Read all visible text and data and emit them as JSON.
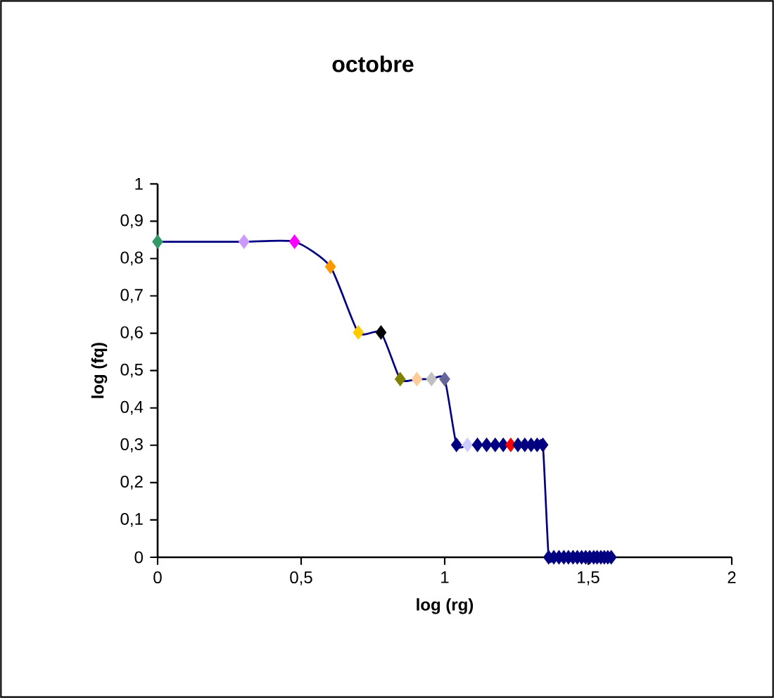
{
  "chart_data": {
    "type": "line",
    "title": "octobre",
    "xlabel": "log (rg)",
    "ylabel": "log (fq)",
    "marker": "diamond",
    "line_style": "solid",
    "xlim": [
      0,
      2
    ],
    "ylim": [
      0,
      1
    ],
    "xticks": [
      0,
      {
        "value": 0.5,
        "label": "0,5"
      },
      1,
      {
        "value": 1.5,
        "label": "1,5"
      },
      2
    ],
    "yticks": [
      0,
      {
        "value": 0.1,
        "label": "0,1"
      },
      {
        "value": 0.2,
        "label": "0,2"
      },
      {
        "value": 0.3,
        "label": "0,3"
      },
      {
        "value": 0.4,
        "label": "0,4"
      },
      {
        "value": 0.5,
        "label": "0,5"
      },
      {
        "value": 0.6,
        "label": "0,6"
      },
      {
        "value": 0.7,
        "label": "0,7"
      },
      {
        "value": 0.8,
        "label": "0,8"
      },
      {
        "value": 0.9,
        "label": "0,9"
      },
      1
    ],
    "series": [
      {
        "color": "#000080",
        "x": [
          0,
          0.301,
          0.477,
          0.602,
          0.699,
          0.778,
          0.845,
          0.903,
          0.954,
          1.0,
          1.041,
          1.079,
          1.114,
          1.146,
          1.176,
          1.204,
          1.23,
          1.255,
          1.279,
          1.301,
          1.322,
          1.342,
          1.362,
          1.38,
          1.398,
          1.415,
          1.431,
          1.447,
          1.462,
          1.477,
          1.491,
          1.505,
          1.519,
          1.531,
          1.544,
          1.556,
          1.568,
          1.58
        ],
        "values": [
          0.845,
          0.845,
          0.845,
          0.778,
          0.602,
          0.602,
          0.477,
          0.477,
          0.477,
          0.477,
          0.301,
          0.301,
          0.301,
          0.301,
          0.301,
          0.301,
          0.301,
          0.301,
          0.301,
          0.301,
          0.301,
          0.301,
          0,
          0,
          0,
          0,
          0,
          0,
          0,
          0,
          0,
          0,
          0,
          0,
          0,
          0,
          0,
          0
        ],
        "colors": [
          "#339966",
          "#cc99ff",
          "#ff00ff",
          "#ff9900",
          "#ffcc00",
          "#000000",
          "#808000",
          "#ffcc99",
          "#c0c0c0",
          "#666699",
          "#000080",
          "#ccccff",
          "#000080",
          "#000080",
          "#000080",
          "#000080",
          "#ff0000",
          "#000080",
          "#000080",
          "#000080",
          "#000080",
          "#000080",
          "#000080",
          "#000080",
          "#000080",
          "#000080",
          "#000080",
          "#000080",
          "#000080",
          "#000080",
          "#000080",
          "#000080",
          "#000080",
          "#000080",
          "#000080",
          "#000080",
          "#000080",
          "#000080"
        ]
      }
    ]
  }
}
